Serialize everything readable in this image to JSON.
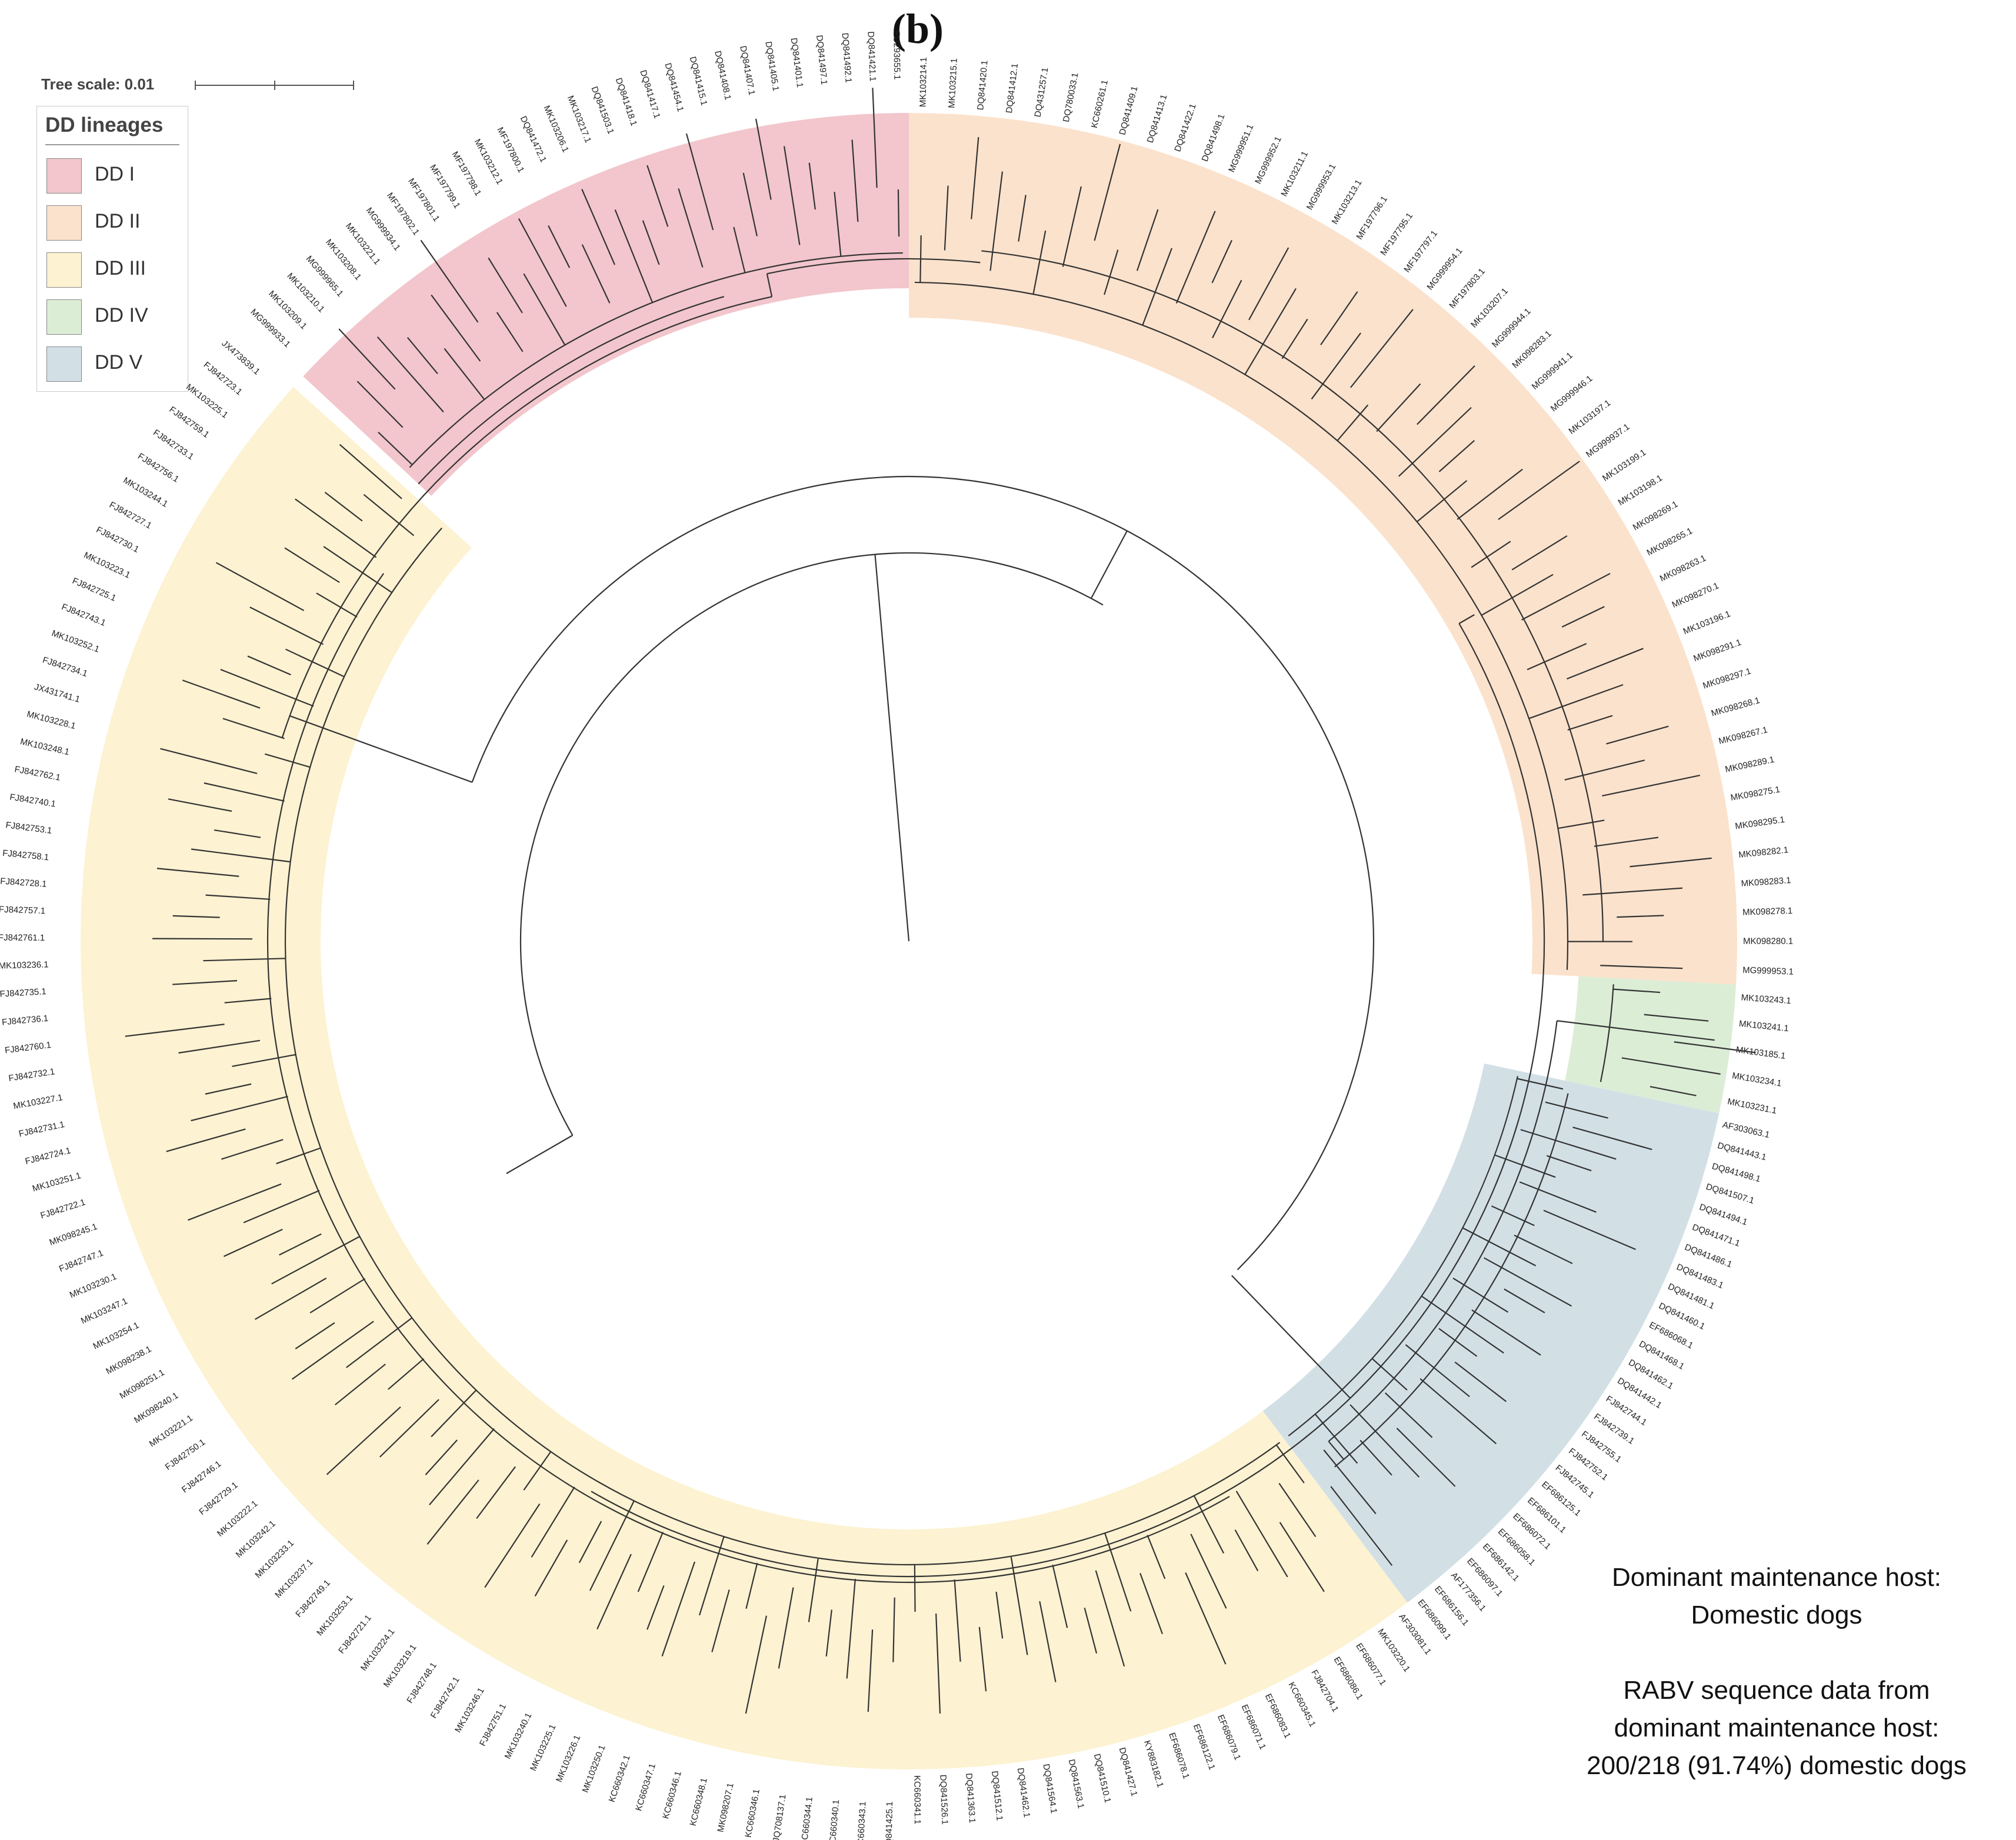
{
  "panel_label": "(b)",
  "tree_scale": {
    "label": "Tree scale: 0.01"
  },
  "legend": {
    "title": "DD lineages",
    "items": [
      {
        "label": "DD I",
        "color": "#f2c6cc"
      },
      {
        "label": "DD II",
        "color": "#fbe2cc"
      },
      {
        "label": "DD III",
        "color": "#fdf2d1"
      },
      {
        "label": "DD IV",
        "color": "#dcedd6"
      },
      {
        "label": "DD V",
        "color": "#d2e0e6"
      }
    ]
  },
  "info": {
    "host_heading": "Dominant maintenance host:",
    "host_value": "Domestic dogs",
    "data_heading_line1": "RABV sequence data from",
    "data_heading_line2": "dominant maintenance host:",
    "data_value": "200/218 (91.74%) domestic dogs"
  },
  "branch_color": "#333333",
  "clades": [
    {
      "lineage": "DD I",
      "tips": [
        "MG999933.1",
        "MK103209.1",
        "MK103210.1",
        "MG999965.1",
        "MK103208.1",
        "MK103221.1",
        "MG999934.1",
        "MF197802.1",
        "MF197801.1",
        "MF197799.1",
        "MF197798.1",
        "MK103212.1",
        "MF197800.1",
        "DQ841472.1",
        "MK103206.1",
        "MK103217.1",
        "DQ841503.1",
        "DQ841418.1",
        "DQ841417.1",
        "DQ841454.1",
        "DQ841415.1",
        "DQ841408.1",
        "DQ841407.1",
        "DQ841405.1",
        "DQ841401.1",
        "DQ841497.1",
        "DQ841492.1",
        "DQ841421.1",
        "EU293655.1"
      ]
    },
    {
      "lineage": "DD II",
      "tips": [
        "MK103214.1",
        "MK103215.1",
        "DQ841420.1",
        "DQ841412.1",
        "DQ431257.1",
        "DQ780033.1",
        "KC660261.1",
        "DQ841409.1",
        "DQ841413.1",
        "DQ841422.1",
        "DQ841498.1",
        "MG999951.1",
        "MG999952.1",
        "MK103211.1",
        "MG999953.1",
        "MK103213.1",
        "MF197796.1",
        "MF197795.1",
        "MF197797.1",
        "MG999954.1",
        "MF197803.1",
        "MK103207.1",
        "MG999944.1",
        "MK098283.1",
        "MG999941.1",
        "MG999946.1",
        "MK103197.1",
        "MG999937.1",
        "MK103199.1",
        "MK103198.1",
        "MK098269.1",
        "MK098265.1",
        "MK098263.1",
        "MK098270.1",
        "MK103196.1",
        "MK098291.1",
        "MK098297.1",
        "MK098268.1",
        "MK098267.1",
        "MK098289.1",
        "MK098275.1",
        "MK098295.1",
        "MK098282.1",
        "MK098283.1",
        "MK098278.1",
        "MK098280.1",
        "MG999953.1"
      ]
    },
    {
      "lineage": "DD IV",
      "tips": [
        "MK103243.1",
        "MK103241.1",
        "MK103185.1",
        "MK103234.1",
        "MK103231.1"
      ]
    },
    {
      "lineage": "DD V",
      "tips": [
        "AF303063.1",
        "DQ841443.1",
        "DQ841498.1",
        "DQ841507.1",
        "DQ841494.1",
        "DQ841471.1",
        "DQ841486.1",
        "DQ841483.1",
        "DQ841481.1",
        "DQ841460.1",
        "EF686068.1",
        "DQ841468.1",
        "DQ841462.1",
        "DQ841442.1",
        "FJ842744.1",
        "FJ842739.1",
        "FJ842755.1",
        "FJ842752.1",
        "FJ842745.1",
        "EF686125.1",
        "EF686101.1",
        "EF686072.1",
        "EF686058.1",
        "EF686142.1",
        "EF686097.1",
        "AF177356.1",
        "EF686156.1",
        "EF686099.1"
      ]
    },
    {
      "lineage": "DD III",
      "tips": [
        "AF303081.1",
        "MK103220.1",
        "EF686077.1",
        "EF686086.1",
        "FJ842704.1",
        "KC660345.1",
        "EF686083.1",
        "EF686071.1",
        "EF686079.1",
        "EF686122.1",
        "EF686078.1",
        "KY883182.1",
        "DQ841427.1",
        "DQ841510.1",
        "DQ841563.1",
        "DQ841564.1",
        "DQ841462.1",
        "DQ841512.1",
        "DQ841363.1",
        "DQ841526.1",
        "KC660341.1",
        "DQ841425.1",
        "KC660343.1",
        "KC660340.1",
        "KC660344.1",
        "JQ708137.1",
        "KC660346.1",
        "MK098207.1",
        "KC660348.1",
        "KC660346.1",
        "KC660347.1",
        "KC660342.1",
        "MK103250.1",
        "MK103226.1",
        "MK103225.1",
        "MK103240.1",
        "FJ842751.1",
        "MK103246.1",
        "FJ842742.1",
        "FJ842748.1",
        "MK103219.1",
        "MK103224.1",
        "FJ842721.1",
        "MK103253.1",
        "FJ842749.1",
        "MK103237.1",
        "MK103233.1",
        "MK103242.1",
        "MK103222.1",
        "FJ842729.1",
        "FJ842746.1",
        "FJ842750.1",
        "MK103221.1",
        "MK098240.1",
        "MK098251.1",
        "MK098238.1",
        "MK103254.1",
        "MK103247.1",
        "MK103230.1",
        "FJ842747.1",
        "MK098245.1",
        "FJ842722.1",
        "MK103251.1",
        "FJ842724.1",
        "FJ842731.1",
        "MK103227.1",
        "FJ842732.1",
        "FJ842760.1",
        "FJ842736.1",
        "FJ842735.1",
        "MK103236.1",
        "FJ842761.1",
        "FJ842757.1",
        "FJ842728.1",
        "FJ842758.1",
        "FJ842753.1",
        "FJ842740.1",
        "FJ842762.1",
        "MK103248.1",
        "MK103228.1",
        "JX431741.1",
        "FJ842734.1",
        "MK103252.1",
        "FJ842743.1",
        "FJ842725.1",
        "MK103223.1",
        "FJ842730.1",
        "FJ842727.1",
        "MK103244.1",
        "FJ842756.1",
        "FJ842733.1",
        "FJ842759.1",
        "MK103225.1",
        "FJ842723.1",
        "JX473839.1"
      ]
    }
  ]
}
